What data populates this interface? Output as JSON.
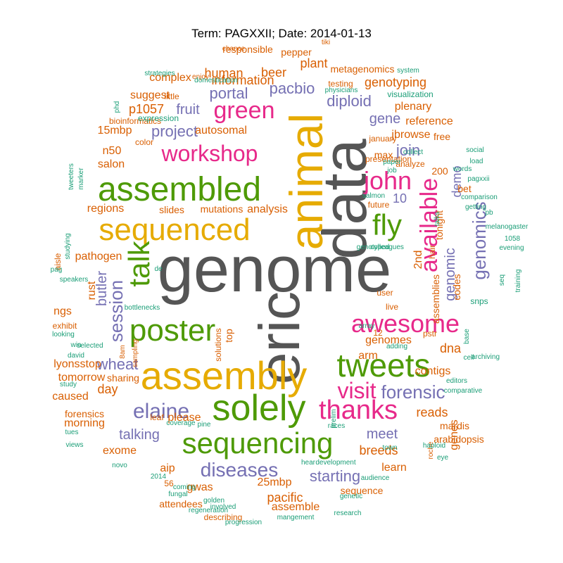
{
  "title": "Term: PAGXXII; Date: 2014-01-13",
  "palette": {
    "gray": "#555555",
    "orange": "#d95f02",
    "gold": "#e6ab02",
    "green": "#4e9a06",
    "magenta": "#e7298a",
    "purple": "#7570b3",
    "teal": "#1b9e77"
  },
  "words": [
    {
      "text": "genome",
      "color": "gray"
    },
    {
      "text": "data",
      "color": "gray"
    },
    {
      "text": "eric",
      "color": "gray"
    },
    {
      "text": "animal",
      "color": "gold"
    },
    {
      "text": "sequenced",
      "color": "gold"
    },
    {
      "text": "assembly",
      "color": "gold"
    },
    {
      "text": "assembled",
      "color": "green"
    },
    {
      "text": "poster",
      "color": "green"
    },
    {
      "text": "solely",
      "color": "green"
    },
    {
      "text": "tweets",
      "color": "green"
    },
    {
      "text": "sequencing",
      "color": "green"
    },
    {
      "text": "talk",
      "color": "green"
    },
    {
      "text": "fly",
      "color": "green"
    },
    {
      "text": "green",
      "color": "magenta"
    },
    {
      "text": "workshop",
      "color": "magenta"
    },
    {
      "text": "awesome",
      "color": "magenta"
    },
    {
      "text": "thanks",
      "color": "magenta"
    },
    {
      "text": "john",
      "color": "magenta"
    },
    {
      "text": "available",
      "color": "magenta"
    },
    {
      "text": "visit",
      "color": "magenta"
    },
    {
      "text": "elaine",
      "color": "purple"
    },
    {
      "text": "diseases",
      "color": "purple"
    },
    {
      "text": "forensic",
      "color": "purple"
    },
    {
      "text": "session",
      "color": "purple"
    },
    {
      "text": "genomics",
      "color": "purple"
    },
    {
      "text": "wheat",
      "color": "purple"
    },
    {
      "text": "pacbio",
      "color": "purple"
    },
    {
      "text": "portal",
      "color": "purple"
    },
    {
      "text": "diploid",
      "color": "purple"
    },
    {
      "text": "project",
      "color": "purple"
    },
    {
      "text": "fruit",
      "color": "purple"
    },
    {
      "text": "gene",
      "color": "purple"
    },
    {
      "text": "join",
      "color": "purple"
    },
    {
      "text": "talking",
      "color": "purple"
    },
    {
      "text": "meet",
      "color": "purple"
    },
    {
      "text": "starting",
      "color": "purple"
    },
    {
      "text": "butler",
      "color": "purple"
    },
    {
      "text": "demo",
      "color": "purple"
    },
    {
      "text": "genomic",
      "color": "purple"
    },
    {
      "text": "10",
      "color": "purple"
    },
    {
      "text": "information",
      "color": "orange"
    },
    {
      "text": "human",
      "color": "orange"
    },
    {
      "text": "beer",
      "color": "orange"
    },
    {
      "text": "plant",
      "color": "orange"
    },
    {
      "text": "genotyping",
      "color": "orange"
    },
    {
      "text": "complex",
      "color": "orange"
    },
    {
      "text": "responsible",
      "color": "orange"
    },
    {
      "text": "pepper",
      "color": "orange"
    },
    {
      "text": "metagenomics",
      "color": "orange"
    },
    {
      "text": "suggest",
      "color": "orange"
    },
    {
      "text": "p1057",
      "color": "orange"
    },
    {
      "text": "plenary",
      "color": "orange"
    },
    {
      "text": "reference",
      "color": "orange"
    },
    {
      "text": "autosomal",
      "color": "orange"
    },
    {
      "text": "15mbp",
      "color": "orange"
    },
    {
      "text": "jbrowse",
      "color": "orange"
    },
    {
      "text": "n50",
      "color": "orange"
    },
    {
      "text": "salon",
      "color": "orange"
    },
    {
      "text": "max",
      "color": "orange"
    },
    {
      "text": "free",
      "color": "orange"
    },
    {
      "text": "regions",
      "color": "orange"
    },
    {
      "text": "slides",
      "color": "orange"
    },
    {
      "text": "mutations",
      "color": "orange"
    },
    {
      "text": "analysis",
      "color": "orange"
    },
    {
      "text": "200",
      "color": "orange"
    },
    {
      "text": "bet",
      "color": "orange"
    },
    {
      "text": "pathogen",
      "color": "orange"
    },
    {
      "text": "rust",
      "color": "orange"
    },
    {
      "text": "tonight",
      "color": "orange"
    },
    {
      "text": "2nd",
      "color": "orange"
    },
    {
      "text": "assemblies",
      "color": "orange"
    },
    {
      "text": "codes",
      "color": "orange"
    },
    {
      "text": "ngs",
      "color": "orange"
    },
    {
      "text": "genomes",
      "color": "orange"
    },
    {
      "text": "dna",
      "color": "orange"
    },
    {
      "text": "arm",
      "color": "orange"
    },
    {
      "text": "lyonsstop",
      "color": "orange"
    },
    {
      "text": "day",
      "color": "orange"
    },
    {
      "text": "reads",
      "color": "orange"
    },
    {
      "text": "contigs",
      "color": "orange"
    },
    {
      "text": "tomorrow",
      "color": "orange"
    },
    {
      "text": "morning",
      "color": "orange"
    },
    {
      "text": "please",
      "color": "orange"
    },
    {
      "text": "exome",
      "color": "orange"
    },
    {
      "text": "breeds",
      "color": "orange"
    },
    {
      "text": "genes",
      "color": "orange"
    },
    {
      "text": "aip",
      "color": "orange"
    },
    {
      "text": "gwas",
      "color": "orange"
    },
    {
      "text": "learn",
      "color": "orange"
    },
    {
      "text": "25mbp",
      "color": "orange"
    },
    {
      "text": "pacific",
      "color": "orange"
    },
    {
      "text": "sequence",
      "color": "orange"
    },
    {
      "text": "assemble",
      "color": "orange"
    },
    {
      "text": "caused",
      "color": "orange"
    },
    {
      "text": "forensics",
      "color": "orange"
    },
    {
      "text": "mardis",
      "color": "orange"
    },
    {
      "text": "arabidopsis",
      "color": "orange"
    },
    {
      "text": "attendees",
      "color": "orange"
    },
    {
      "text": "january",
      "color": "orange"
    },
    {
      "text": "presentation",
      "color": "orange"
    },
    {
      "text": "future",
      "color": "orange"
    },
    {
      "text": "hair",
      "color": "orange"
    },
    {
      "text": "12",
      "color": "orange"
    },
    {
      "text": "sharing",
      "color": "orange"
    },
    {
      "text": "leaf",
      "color": "orange"
    },
    {
      "text": "exhibit",
      "color": "orange"
    },
    {
      "text": "aisle",
      "color": "orange"
    },
    {
      "text": "testing",
      "color": "orange"
    },
    {
      "text": "bioinformatics",
      "color": "orange"
    },
    {
      "text": "little",
      "color": "orange"
    },
    {
      "text": "color",
      "color": "orange"
    },
    {
      "text": "top",
      "color": "orange"
    },
    {
      "text": "solutions",
      "color": "orange"
    },
    {
      "text": "live",
      "color": "orange"
    },
    {
      "text": "user",
      "color": "orange"
    },
    {
      "text": "pstr",
      "color": "orange"
    },
    {
      "text": "56",
      "color": "orange"
    },
    {
      "text": "describing",
      "color": "orange"
    },
    {
      "text": "enjoy",
      "color": "orange"
    },
    {
      "text": "sampling",
      "color": "orange"
    },
    {
      "text": "8am",
      "color": "orange"
    },
    {
      "text": "roche",
      "color": "orange"
    },
    {
      "text": "analyze",
      "color": "orange"
    },
    {
      "text": "chance",
      "color": "orange"
    },
    {
      "text": "tiki",
      "color": "orange"
    },
    {
      "text": "strategies",
      "color": "teal"
    },
    {
      "text": "domestication",
      "color": "teal"
    },
    {
      "text": "system",
      "color": "teal"
    },
    {
      "text": "physicians",
      "color": "teal"
    },
    {
      "text": "visualization",
      "color": "teal"
    },
    {
      "text": "phd",
      "color": "teal"
    },
    {
      "text": "expression",
      "color": "teal"
    },
    {
      "text": "tweeters",
      "color": "teal"
    },
    {
      "text": "marker",
      "color": "teal"
    },
    {
      "text": "collect",
      "color": "teal"
    },
    {
      "text": "paper",
      "color": "teal"
    },
    {
      "text": "job",
      "color": "teal"
    },
    {
      "text": "social",
      "color": "teal"
    },
    {
      "text": "load",
      "color": "teal"
    },
    {
      "text": "words",
      "color": "teal"
    },
    {
      "text": "pagxxii",
      "color": "teal"
    },
    {
      "text": "comparison",
      "color": "teal"
    },
    {
      "text": "salmon",
      "color": "teal"
    },
    {
      "text": "getting",
      "color": "teal"
    },
    {
      "text": "pb",
      "color": "teal"
    },
    {
      "text": "talks",
      "color": "teal"
    },
    {
      "text": "melanogaster",
      "color": "teal"
    },
    {
      "text": "1058",
      "color": "teal"
    },
    {
      "text": "evening",
      "color": "teal"
    },
    {
      "text": "studying",
      "color": "teal"
    },
    {
      "text": "genotyped",
      "color": "teal"
    },
    {
      "text": "colleagues",
      "color": "teal"
    },
    {
      "text": "pag",
      "color": "teal"
    },
    {
      "text": "de",
      "color": "teal"
    },
    {
      "text": "speakers",
      "color": "teal"
    },
    {
      "text": "seq",
      "color": "teal"
    },
    {
      "text": "training",
      "color": "teal"
    },
    {
      "text": "snps",
      "color": "teal"
    },
    {
      "text": "bottlenecks",
      "color": "teal"
    },
    {
      "text": "looking",
      "color": "teal"
    },
    {
      "text": "win",
      "color": "teal"
    },
    {
      "text": "david",
      "color": "teal"
    },
    {
      "text": "selected",
      "color": "teal"
    },
    {
      "text": "array",
      "color": "teal"
    },
    {
      "text": "base",
      "color": "teal"
    },
    {
      "text": "cell",
      "color": "teal"
    },
    {
      "text": "archiving",
      "color": "teal"
    },
    {
      "text": "adding",
      "color": "teal"
    },
    {
      "text": "study",
      "color": "teal"
    },
    {
      "text": "editors",
      "color": "teal"
    },
    {
      "text": "comparative",
      "color": "teal"
    },
    {
      "text": "prelim",
      "color": "teal"
    },
    {
      "text": "coverage",
      "color": "teal"
    },
    {
      "text": "pine",
      "color": "teal"
    },
    {
      "text": "races",
      "color": "teal"
    },
    {
      "text": "tues",
      "color": "teal"
    },
    {
      "text": "views",
      "color": "teal"
    },
    {
      "text": "town",
      "color": "teal"
    },
    {
      "text": "haploid",
      "color": "teal"
    },
    {
      "text": "eye",
      "color": "teal"
    },
    {
      "text": "novo",
      "color": "teal"
    },
    {
      "text": "hear",
      "color": "teal"
    },
    {
      "text": "development",
      "color": "teal"
    },
    {
      "text": "2014",
      "color": "teal"
    },
    {
      "text": "audience",
      "color": "teal"
    },
    {
      "text": "fungal",
      "color": "teal"
    },
    {
      "text": "coming",
      "color": "teal"
    },
    {
      "text": "genetic",
      "color": "teal"
    },
    {
      "text": "golden",
      "color": "teal"
    },
    {
      "text": "involved",
      "color": "teal"
    },
    {
      "text": "regeneration",
      "color": "teal"
    },
    {
      "text": "mangement",
      "color": "teal"
    },
    {
      "text": "research",
      "color": "teal"
    },
    {
      "text": "progression",
      "color": "teal"
    },
    {
      "text": "sunday",
      "color": "teal"
    },
    {
      "text": "assemblers",
      "color": "teal"
    },
    {
      "text": "welcome",
      "color": "teal"
    }
  ]
}
